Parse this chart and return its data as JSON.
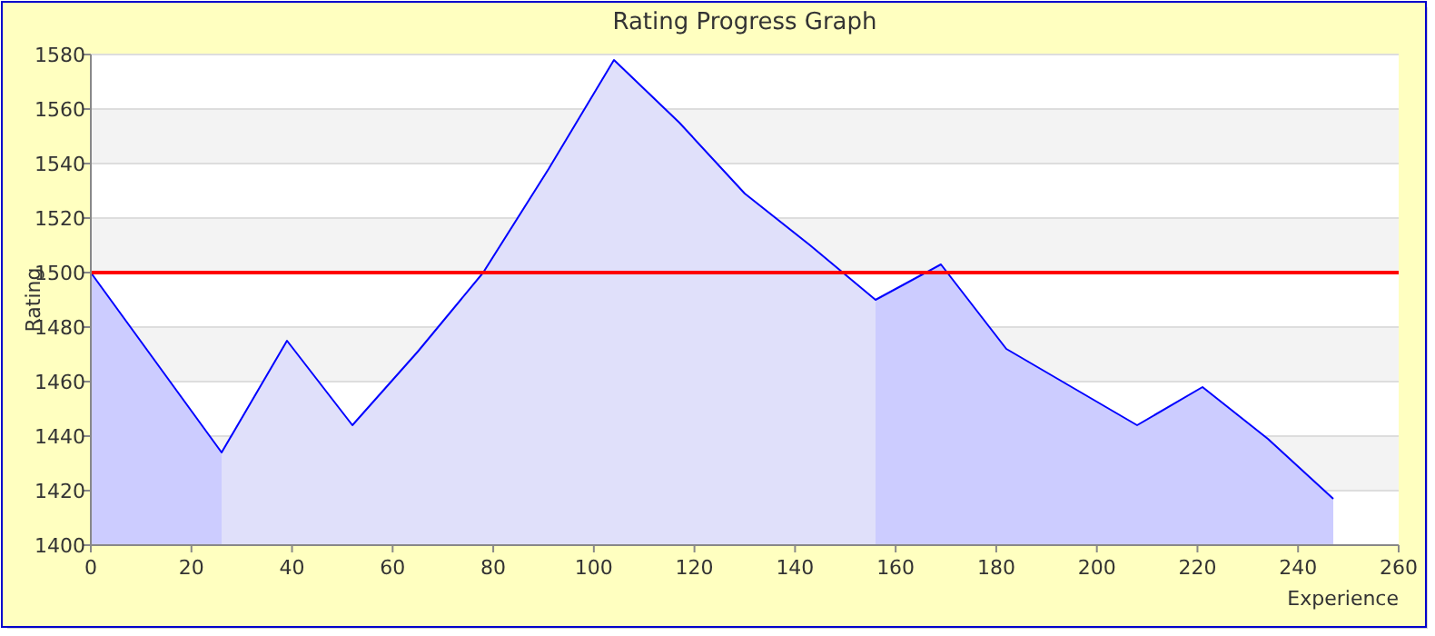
{
  "chart_data": {
    "type": "area",
    "title": "Rating Progress Graph",
    "xlabel": "Experience",
    "ylabel": "Rating",
    "x": [
      0,
      13,
      26,
      39,
      52,
      65,
      78,
      91,
      104,
      117,
      130,
      143,
      156,
      169,
      182,
      195,
      208,
      221,
      234,
      247
    ],
    "series": [
      {
        "color": "#ccccff",
        "values": [
          1500,
          1467,
          1434,
          null,
          null,
          null,
          null,
          null,
          null,
          null,
          null,
          null,
          1490,
          1503,
          1472,
          1458,
          1444,
          1458,
          1439,
          1417
        ]
      },
      {
        "color": "#e0e0fa",
        "values": [
          null,
          null,
          1434,
          1475,
          1444,
          1471,
          1500,
          1538,
          1578,
          1555,
          1529,
          1510,
          1490,
          null,
          null,
          null,
          null,
          null,
          null,
          null
        ]
      },
      {
        "type": "line",
        "color": "#0000ff",
        "values": [
          1500,
          1467,
          1434,
          1475,
          1444,
          1471,
          1500,
          1538,
          1578,
          1555,
          1529,
          1510,
          1490,
          1503,
          1472,
          1458,
          1444,
          1458,
          1439,
          1417
        ]
      }
    ],
    "xlim": [
      0,
      260
    ],
    "xticks": [
      0,
      20,
      40,
      60,
      80,
      100,
      120,
      140,
      160,
      180,
      200,
      220,
      240,
      260
    ],
    "ylim": [
      1400,
      1580
    ],
    "yticks": [
      1400,
      1420,
      1440,
      1460,
      1480,
      1500,
      1520,
      1540,
      1560,
      1580
    ],
    "grid": "y",
    "marker": "none",
    "line_style": "solid",
    "ref_lines": [
      {
        "axis": "y",
        "value": 1500,
        "color": "#ff0000"
      }
    ]
  }
}
